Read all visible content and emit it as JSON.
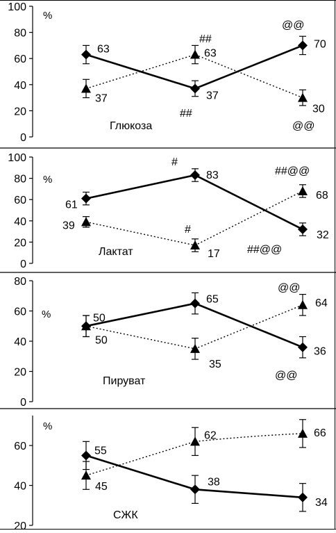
{
  "chart_data": [
    {
      "type": "line",
      "title": "Глюкоза",
      "ylabel": "%",
      "ylim": [
        0,
        100
      ],
      "yticks": [
        0,
        20,
        40,
        60,
        80,
        100
      ],
      "x": [
        1,
        2,
        3
      ],
      "series": [
        {
          "values": [
            63,
            37,
            70
          ],
          "errors": [
            7,
            6,
            7
          ],
          "marker": "diamond",
          "line": "solid",
          "labels": [
            "63",
            "37",
            "70"
          ],
          "annotations": [
            "",
            "",
            "@@"
          ]
        },
        {
          "values": [
            37,
            63,
            30
          ],
          "errors": [
            7,
            7,
            6
          ],
          "marker": "triangle",
          "line": "dotted",
          "labels": [
            "37",
            "63",
            "30"
          ],
          "annotations": [
            "",
            "##",
            "@@"
          ]
        }
      ],
      "extra_annotations": [
        "##"
      ]
    },
    {
      "type": "line",
      "title": "Лактат",
      "ylabel": "%",
      "ylim": [
        0,
        100
      ],
      "yticks": [
        0,
        20,
        40,
        60,
        80,
        100
      ],
      "x": [
        1,
        2,
        3
      ],
      "series": [
        {
          "values": [
            61,
            83,
            32
          ],
          "errors": [
            6,
            6,
            6
          ],
          "marker": "diamond",
          "line": "solid",
          "labels": [
            "61",
            "83",
            "32"
          ],
          "annotations": [
            "",
            "#",
            ""
          ]
        },
        {
          "values": [
            39,
            17,
            68
          ],
          "errors": [
            5,
            6,
            6
          ],
          "marker": "triangle",
          "line": "dotted",
          "labels": [
            "39",
            "17",
            "68"
          ],
          "annotations": [
            "",
            "#",
            "##@@"
          ]
        }
      ],
      "extra_annotations": [
        "##@@"
      ]
    },
    {
      "type": "line",
      "title": "Пируват",
      "ylabel": "%",
      "ylim": [
        0,
        80
      ],
      "yticks": [
        0,
        20,
        40,
        60,
        80
      ],
      "x": [
        1,
        2,
        3
      ],
      "series": [
        {
          "values": [
            50,
            65,
            36
          ],
          "errors": [
            7,
            7,
            7
          ],
          "marker": "diamond",
          "line": "solid",
          "labels": [
            "50",
            "65",
            "36"
          ],
          "annotations": [
            "",
            "",
            "@@"
          ]
        },
        {
          "values": [
            50,
            35,
            64
          ],
          "errors": [
            7,
            7,
            7
          ],
          "marker": "triangle",
          "line": "dotted",
          "labels": [
            "50",
            "35",
            "64"
          ],
          "annotations": [
            "",
            "",
            "@@"
          ]
        }
      ],
      "extra_annotations": []
    },
    {
      "type": "line",
      "title": "СЖК",
      "ylabel": "%",
      "ylim": [
        20,
        75
      ],
      "yticks": [
        20,
        40,
        60
      ],
      "x": [
        1,
        2,
        3
      ],
      "series": [
        {
          "values": [
            55,
            38,
            34
          ],
          "errors": [
            7,
            7,
            7
          ],
          "marker": "diamond",
          "line": "solid",
          "labels": [
            "55",
            "38",
            "34"
          ],
          "annotations": [
            "",
            "",
            ""
          ]
        },
        {
          "values": [
            45,
            62,
            66
          ],
          "errors": [
            7,
            7,
            7
          ],
          "marker": "triangle",
          "line": "dotted",
          "labels": [
            "45",
            "62",
            "66"
          ],
          "annotations": [
            "",
            "",
            ""
          ]
        }
      ],
      "extra_annotations": []
    }
  ]
}
